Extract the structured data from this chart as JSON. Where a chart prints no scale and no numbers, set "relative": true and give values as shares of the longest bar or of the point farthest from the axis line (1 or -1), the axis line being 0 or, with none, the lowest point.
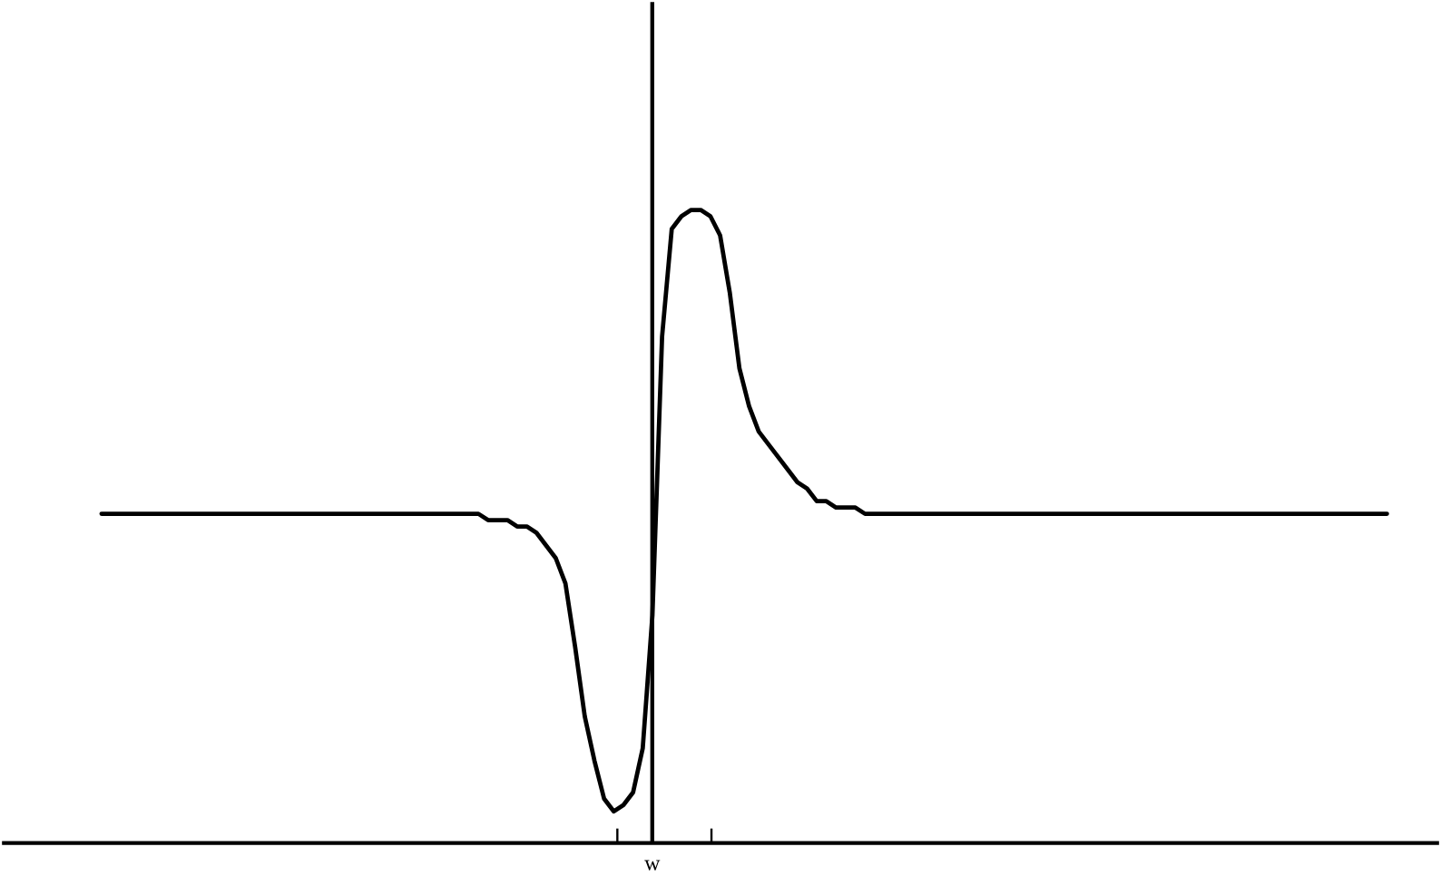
{
  "chart_data": {
    "type": "line",
    "relative": true,
    "color": "#000000",
    "categories": [
      null,
      null,
      null,
      null,
      null,
      null,
      null,
      null,
      null,
      null,
      null,
      null,
      null,
      null,
      null,
      null,
      null,
      null,
      null,
      null,
      null,
      null,
      null,
      null,
      null,
      null,
      null,
      null,
      null,
      null,
      null,
      null,
      null,
      null,
      null,
      null,
      null,
      null,
      null,
      null,
      null,
      null,
      null,
      null,
      null,
      null,
      null,
      null,
      null,
      null,
      null,
      null,
      null,
      null,
      null,
      null,
      null,
      null,
      null,
      null,
      null,
      null,
      null,
      null,
      null,
      null,
      null,
      null,
      null,
      null,
      null,
      null,
      null,
      null,
      null,
      null,
      null,
      null,
      null,
      null,
      null,
      null,
      null,
      null,
      null,
      null,
      null,
      null,
      null,
      null,
      null,
      null,
      null,
      null,
      null,
      null,
      null,
      null,
      null,
      null,
      null,
      null,
      null,
      null,
      null,
      null,
      null,
      null,
      null,
      null,
      null,
      null,
      null,
      null,
      null,
      null,
      null,
      null,
      null,
      null,
      null,
      null,
      null,
      null,
      null,
      null,
      null,
      null,
      null,
      null,
      null,
      null,
      null,
      null
    ],
    "values": [
      0.52,
      0.52,
      0.52,
      0.52,
      0.52,
      0.52,
      0.52,
      0.52,
      0.52,
      0.52,
      0.52,
      0.52,
      0.52,
      0.52,
      0.52,
      0.52,
      0.52,
      0.52,
      0.52,
      0.52,
      0.52,
      0.52,
      0.52,
      0.52,
      0.52,
      0.52,
      0.52,
      0.52,
      0.52,
      0.52,
      0.52,
      0.52,
      0.52,
      0.52,
      0.52,
      0.52,
      0.52,
      0.52,
      0.52,
      0.52,
      0.51,
      0.51,
      0.51,
      0.5,
      0.5,
      0.49,
      0.47,
      0.45,
      0.41,
      0.31,
      0.2,
      0.13,
      0.07,
      0.05,
      0.06,
      0.08,
      0.15,
      0.36,
      0.8,
      0.97,
      0.99,
      1.0,
      1.0,
      0.99,
      0.96,
      0.87,
      0.75,
      0.69,
      0.65,
      0.63,
      0.61,
      0.59,
      0.57,
      0.56,
      0.54,
      0.54,
      0.53,
      0.53,
      0.53,
      0.52,
      0.52,
      0.52,
      0.52,
      0.52,
      0.52,
      0.52,
      0.52,
      0.52,
      0.52,
      0.52,
      0.52,
      0.52,
      0.52,
      0.52,
      0.52,
      0.52,
      0.52,
      0.52,
      0.52,
      0.52,
      0.52,
      0.52,
      0.52,
      0.52,
      0.52,
      0.52,
      0.52,
      0.52,
      0.52,
      0.52,
      0.52,
      0.52,
      0.52,
      0.52,
      0.52,
      0.52,
      0.52,
      0.52,
      0.52,
      0.52,
      0.52,
      0.52,
      0.52,
      0.52,
      0.52,
      0.52,
      0.52,
      0.52,
      0.52,
      0.52,
      0.52,
      0.52,
      0.52,
      0.52
    ],
    "annotations": [
      "w"
    ]
  }
}
